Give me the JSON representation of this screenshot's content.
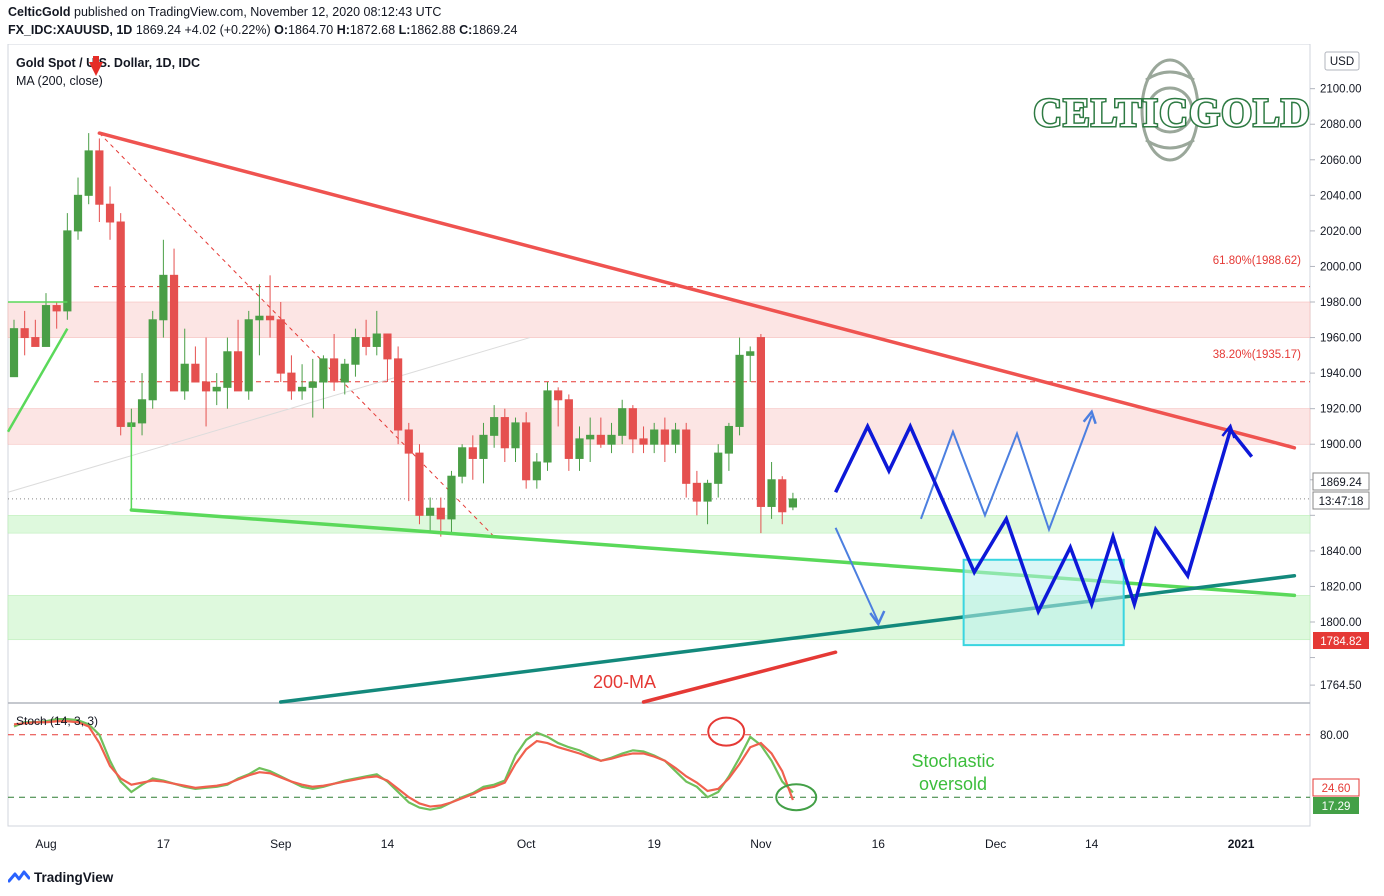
{
  "header": {
    "author": "CelticGold",
    "published_text": "published on TradingView.com, November 12, 2020 08:12:43 UTC",
    "symbol": "FX_IDC:XAUUSD, 1D",
    "last": "1869.24",
    "change": "+4.02 (+0.22%)",
    "o_label": "O:",
    "o_value": "1864.70",
    "h_label": "H:",
    "h_value": "1872.68",
    "l_label": "L:",
    "l_value": "1862.88",
    "c_label": "C:",
    "c_value": "1869.24"
  },
  "legend": {
    "title": "Gold Spot / U.S. Dollar, 1D, IDC",
    "ma": "MA (200, close)",
    "stoch": "Stoch (14, 3, 3)"
  },
  "logo_text": "CELTICGOLD",
  "currency": "USD",
  "annotations": {
    "fib_618": "61.80%(1988.62)",
    "fib_382": "38.20%(1935.17)",
    "ma200": "200-MA",
    "stoch_line1": "Stochastic",
    "stoch_line2": "oversold"
  },
  "price_tags": {
    "current": "1869.24",
    "countdown": "13:47:18",
    "ma": "1784.82",
    "stoch_k": "24.60",
    "stoch_d": "17.29"
  },
  "footer": {
    "brand": "TradingView"
  },
  "colors": {
    "up": "#4a9e46",
    "down": "#e5504f",
    "red_trend": "#ef5350",
    "green_trend": "#5ad95a",
    "teal_trend": "#13897c",
    "forecast_blue": "#0d18d8",
    "forecast_light": "#4c7fe0",
    "target_box": "#39d5e0"
  },
  "chart_data": {
    "type": "candlestick",
    "ylim": [
      1755,
      2115
    ],
    "y_ticks": [
      2100,
      2080,
      2060,
      2040,
      2020,
      2000,
      1980,
      1960,
      1940,
      1920,
      1900,
      1880,
      1860,
      1840,
      1820,
      1800,
      1780,
      1764.5
    ],
    "y_tick_labels": [
      "2100.00",
      "2080.00",
      "2060.00",
      "2040.00",
      "2020.00",
      "2000.00",
      "1980.00",
      "1960.00",
      "1940.00",
      "1920.00",
      "1900.00",
      "1880.00",
      "",
      "1840.00",
      "1820.00",
      "1800.00",
      "",
      "1764.50"
    ],
    "x_ticks": [
      {
        "label": "Aug",
        "i": 3
      },
      {
        "label": "17",
        "i": 14
      },
      {
        "label": "Sep",
        "i": 25
      },
      {
        "label": "14",
        "i": 35
      },
      {
        "label": "Oct",
        "i": 48
      },
      {
        "label": "19",
        "i": 60
      },
      {
        "label": "Nov",
        "i": 70
      },
      {
        "label": "16",
        "i": 81
      },
      {
        "label": "Dec",
        "i": 92
      },
      {
        "label": "14",
        "i": 101
      },
      {
        "label": "2021",
        "i": 115
      }
    ],
    "ohlc": [
      [
        1938,
        1970,
        1940,
        1965
      ],
      [
        1965,
        1975,
        1950,
        1960
      ],
      [
        1960,
        1970,
        1955,
        1955
      ],
      [
        1955,
        1985,
        1955,
        1978
      ],
      [
        1978,
        1980,
        1965,
        1975
      ],
      [
        1975,
        2030,
        1970,
        2020
      ],
      [
        2020,
        2050,
        2015,
        2040
      ],
      [
        2040,
        2075,
        2035,
        2065
      ],
      [
        2065,
        2072,
        2025,
        2035
      ],
      [
        2035,
        2045,
        2015,
        2025
      ],
      [
        2025,
        2030,
        1905,
        1910
      ],
      [
        1910,
        1920,
        1863,
        1912
      ],
      [
        1912,
        1940,
        1905,
        1925
      ],
      [
        1925,
        1975,
        1920,
        1970
      ],
      [
        1970,
        2015,
        1960,
        1995
      ],
      [
        1995,
        2010,
        1930,
        1930
      ],
      [
        1930,
        1965,
        1925,
        1945
      ],
      [
        1945,
        1955,
        1935,
        1935
      ],
      [
        1935,
        1960,
        1910,
        1930
      ],
      [
        1930,
        1940,
        1922,
        1932
      ],
      [
        1932,
        1960,
        1920,
        1952
      ],
      [
        1952,
        1970,
        1930,
        1930
      ],
      [
        1930,
        1975,
        1925,
        1970
      ],
      [
        1970,
        1990,
        1950,
        1972
      ],
      [
        1972,
        1995,
        1960,
        1970
      ],
      [
        1970,
        1980,
        1935,
        1940
      ],
      [
        1940,
        1950,
        1925,
        1930
      ],
      [
        1930,
        1945,
        1925,
        1932
      ],
      [
        1932,
        1948,
        1915,
        1935
      ],
      [
        1935,
        1950,
        1920,
        1948
      ],
      [
        1948,
        1962,
        1930,
        1935
      ],
      [
        1935,
        1948,
        1928,
        1945
      ],
      [
        1945,
        1965,
        1938,
        1960
      ],
      [
        1960,
        1970,
        1950,
        1955
      ],
      [
        1955,
        1975,
        1950,
        1962
      ],
      [
        1962,
        1962,
        1935,
        1948
      ],
      [
        1948,
        1955,
        1900,
        1908
      ],
      [
        1908,
        1912,
        1868,
        1895
      ],
      [
        1895,
        1900,
        1855,
        1860
      ],
      [
        1860,
        1870,
        1850,
        1864
      ],
      [
        1864,
        1870,
        1848,
        1858
      ],
      [
        1858,
        1885,
        1850,
        1882
      ],
      [
        1882,
        1900,
        1878,
        1898
      ],
      [
        1898,
        1905,
        1880,
        1892
      ],
      [
        1892,
        1912,
        1878,
        1905
      ],
      [
        1905,
        1922,
        1898,
        1915
      ],
      [
        1915,
        1920,
        1890,
        1898
      ],
      [
        1898,
        1915,
        1890,
        1912
      ],
      [
        1912,
        1918,
        1875,
        1880
      ],
      [
        1880,
        1895,
        1875,
        1890
      ],
      [
        1890,
        1935,
        1885,
        1930
      ],
      [
        1930,
        1932,
        1910,
        1925
      ],
      [
        1925,
        1928,
        1885,
        1892
      ],
      [
        1892,
        1910,
        1885,
        1903
      ],
      [
        1903,
        1915,
        1890,
        1905
      ],
      [
        1905,
        1915,
        1898,
        1900
      ],
      [
        1900,
        1912,
        1895,
        1905
      ],
      [
        1905,
        1925,
        1900,
        1920
      ],
      [
        1920,
        1922,
        1895,
        1903
      ],
      [
        1903,
        1910,
        1895,
        1900
      ],
      [
        1900,
        1912,
        1895,
        1908
      ],
      [
        1908,
        1915,
        1890,
        1900
      ],
      [
        1900,
        1912,
        1895,
        1908
      ],
      [
        1908,
        1912,
        1870,
        1878
      ],
      [
        1878,
        1885,
        1860,
        1868
      ],
      [
        1868,
        1880,
        1855,
        1878
      ],
      [
        1878,
        1900,
        1870,
        1895
      ],
      [
        1895,
        1912,
        1885,
        1910
      ],
      [
        1910,
        1960,
        1905,
        1950
      ],
      [
        1950,
        1955,
        1935,
        1952
      ],
      [
        1960,
        1962,
        1850,
        1865
      ],
      [
        1865,
        1890,
        1858,
        1880
      ],
      [
        1880,
        1882,
        1855,
        1862
      ],
      [
        1864.7,
        1872.68,
        1862.88,
        1869.24
      ]
    ],
    "horizontal_levels": [
      {
        "label": "61.80%(1988.62)",
        "value": 1988.62
      },
      {
        "label": "38.20%(1935.17)",
        "value": 1935.17
      }
    ],
    "resistance_zones": [
      [
        1960,
        1980
      ],
      [
        1900,
        1920
      ]
    ],
    "support_zones": [
      [
        1850,
        1860
      ],
      [
        1790,
        1815
      ]
    ],
    "trendlines": [
      {
        "name": "red-descending",
        "from": [
          8,
          2075
        ],
        "to": [
          120,
          1898
        ]
      },
      {
        "name": "green-descending",
        "from": [
          11,
          1863
        ],
        "to": [
          120,
          1815
        ]
      },
      {
        "name": "teal-ascending",
        "from": [
          25,
          1755
        ],
        "to": [
          120,
          1826
        ]
      },
      {
        "name": "ma200",
        "from": [
          59,
          1755
        ],
        "to": [
          77,
          1783
        ]
      }
    ],
    "forecast_main": [
      [
        77,
        1873
      ],
      [
        80,
        1910
      ],
      [
        82,
        1885
      ],
      [
        84,
        1910
      ],
      [
        90,
        1828
      ],
      [
        93,
        1858
      ],
      [
        96,
        1806
      ],
      [
        99,
        1842
      ],
      [
        101,
        1810
      ],
      [
        103,
        1848
      ],
      [
        105,
        1810
      ],
      [
        107,
        1852
      ],
      [
        110,
        1826
      ],
      [
        114,
        1908
      ],
      [
        116,
        1893
      ]
    ],
    "forecast_alt": [
      [
        85,
        1858
      ],
      [
        88,
        1907
      ],
      [
        91,
        1860
      ],
      [
        94,
        1906
      ],
      [
        97,
        1852
      ],
      [
        101,
        1916
      ]
    ],
    "forecast_drop": [
      [
        77,
        1853
      ],
      [
        81,
        1800
      ]
    ],
    "target_box": {
      "i_from": 89,
      "i_to": 104,
      "y_from": 1787,
      "y_to": 1835
    },
    "stochastic": {
      "ylim": [
        0,
        100
      ],
      "levels": [
        80,
        20
      ],
      "k": [
        88,
        92,
        92,
        93,
        95,
        95,
        94,
        90,
        80,
        55,
        35,
        25,
        32,
        38,
        36,
        33,
        30,
        28,
        29,
        30,
        32,
        38,
        42,
        48,
        45,
        40,
        35,
        30,
        28,
        30,
        33,
        36,
        38,
        40,
        42,
        35,
        25,
        15,
        10,
        8,
        10,
        15,
        20,
        24,
        30,
        32,
        36,
        60,
        75,
        82,
        78,
        72,
        68,
        65,
        60,
        55,
        58,
        62,
        65,
        64,
        60,
        55,
        45,
        35,
        30,
        20,
        25,
        40,
        58,
        78,
        70,
        55,
        35,
        24.6
      ],
      "d": [
        90,
        91,
        92,
        92,
        93,
        93,
        92,
        88,
        72,
        50,
        38,
        32,
        34,
        36,
        35,
        33,
        31,
        29,
        30,
        31,
        33,
        37,
        41,
        44,
        43,
        39,
        35,
        32,
        30,
        31,
        33,
        35,
        37,
        39,
        40,
        36,
        28,
        20,
        14,
        11,
        12,
        15,
        19,
        23,
        28,
        30,
        34,
        52,
        66,
        74,
        72,
        68,
        65,
        62,
        58,
        55,
        57,
        60,
        62,
        62,
        59,
        55,
        48,
        40,
        34,
        26,
        28,
        38,
        52,
        68,
        72,
        62,
        45,
        17.29
      ]
    }
  }
}
